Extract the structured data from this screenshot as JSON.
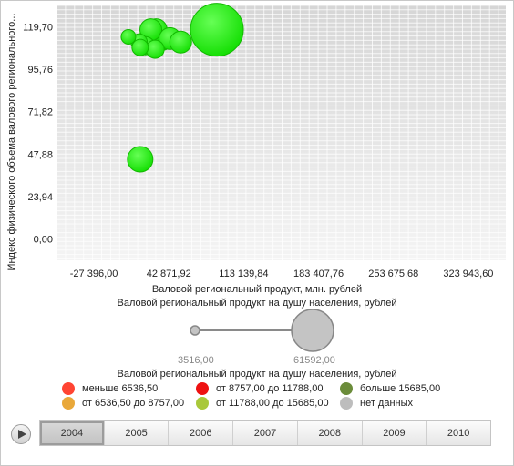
{
  "chart_data": {
    "type": "bubble",
    "ylabel": "Индекс физического объема валового регионального...",
    "xlabel": "Валовой региональный продукт, млн. рублей",
    "x_ticks": [
      "-27 396,00",
      "42 871,92",
      "113 139,84",
      "183 407,76",
      "253 675,68",
      "323 943,60"
    ],
    "y_ticks": [
      "119,70",
      "95,76",
      "71,82",
      "47,88",
      "23,94",
      "0,00"
    ],
    "xlim": [
      -62530,
      359078
    ],
    "ylim": [
      -11.97,
      131.67
    ],
    "grid": true,
    "points": [
      {
        "x": 21000,
        "y": 109,
        "color": "#22ee11"
      },
      {
        "x": 15000,
        "y": 111,
        "color": "#22ee11"
      },
      {
        "x": 26000,
        "y": 112,
        "color": "#22ee11"
      },
      {
        "x": 31000,
        "y": 118,
        "color": "#22ee11"
      },
      {
        "x": 36000,
        "y": 113,
        "color": "#22ee11"
      },
      {
        "x": 26000,
        "y": 118,
        "color": "#22ee11"
      },
      {
        "x": 44000,
        "y": 113,
        "color": "#22ee11"
      },
      {
        "x": 54000,
        "y": 111,
        "color": "#22ee11"
      },
      {
        "x": 5000,
        "y": 114,
        "color": "#22ee11"
      },
      {
        "x": 30000,
        "y": 107,
        "color": "#22ee11"
      },
      {
        "x": 16000,
        "y": 108,
        "color": "#22ee11"
      },
      {
        "x": 88000,
        "y": 118,
        "color": "#22ee11"
      },
      {
        "x": 16000,
        "y": 45,
        "color": "#22ee11"
      }
    ]
  },
  "size_caption": "Валовой региональный продукт на душу населения, рублей",
  "size_min": "3516,00",
  "size_max": "61592,00",
  "legend": {
    "title": "Валовой региональный продукт на душу населения, рублей",
    "items": [
      {
        "label": "меньше 6536,50",
        "color": "#ff4433"
      },
      {
        "label": "от 8757,00 до 11788,00",
        "color": "#ee1111"
      },
      {
        "label": "больше 15685,00",
        "color": "#6b8c3a"
      },
      {
        "label": "от 6536,50 до 8757,00",
        "color": "#e9a83a"
      },
      {
        "label": "от 11788,00 до 15685,00",
        "color": "#a9c83a"
      },
      {
        "label": "нет данных",
        "color": "#bdbdbd"
      }
    ]
  },
  "timeline": {
    "years": [
      "2004",
      "2005",
      "2006",
      "2007",
      "2008",
      "2009",
      "2010"
    ],
    "active": "2004"
  }
}
